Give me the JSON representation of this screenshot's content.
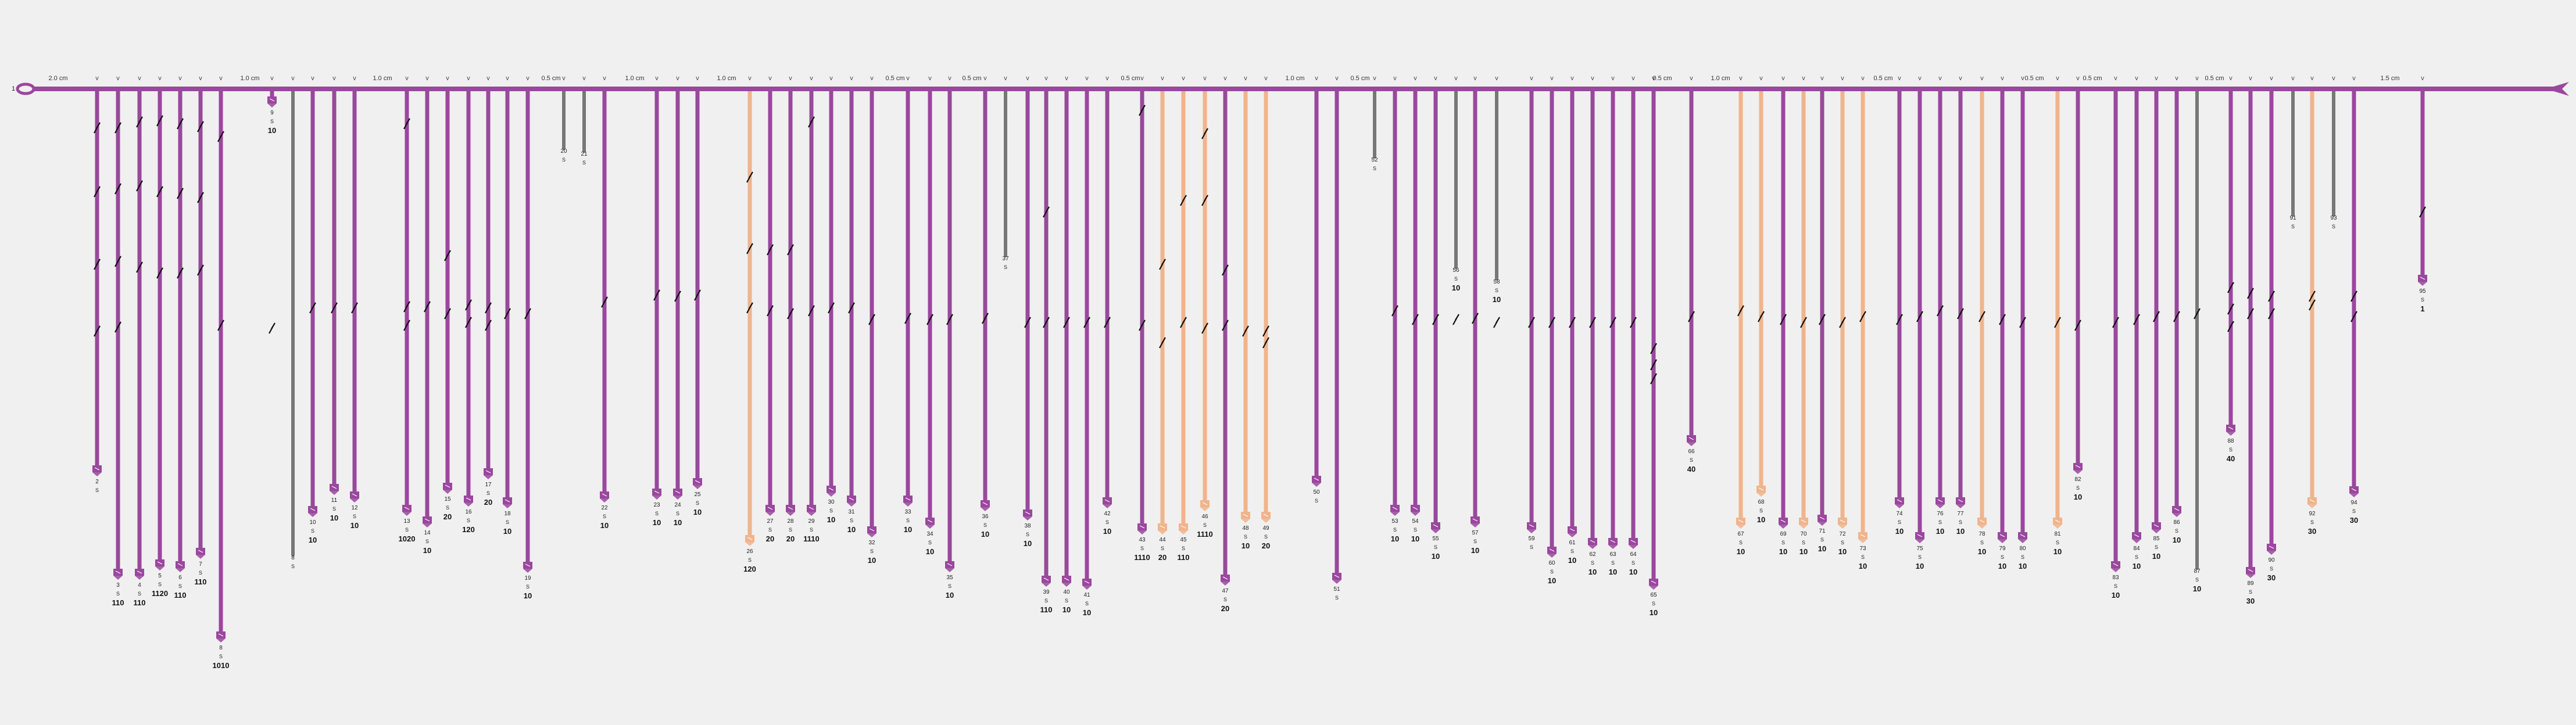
{
  "colors": {
    "background": "#f1f0f0",
    "purple": "#9a479e",
    "orange": "#f0b48c",
    "gray": "#777777",
    "text": "#222222"
  },
  "marker_char": "v",
  "origin_label": "1",
  "scale_labels": [
    "2.0 cm",
    "1.0 cm",
    "1.0 cm",
    "0.5 cm",
    "1.0 cm",
    "1.0 cm",
    "0.5 cm",
    "0.5 cm",
    "0.5 cm",
    "1.0 cm",
    "0.5 cm",
    "0.5 cm",
    "1.0 cm",
    "0.5 cm",
    "0.5 cm",
    "0.5 cm",
    "0.5 cm",
    "1.5 cm"
  ],
  "branches": [
    {
      "label": "2",
      "s": "S",
      "count": "",
      "color": "purple"
    },
    {
      "label": "3",
      "s": "S",
      "count": "110",
      "color": "purple"
    },
    {
      "label": "4",
      "s": "S",
      "count": "110",
      "color": "purple"
    },
    {
      "label": "5",
      "s": "S",
      "count": "1120",
      "color": "purple"
    },
    {
      "label": "6",
      "s": "S",
      "count": "110",
      "color": "purple"
    },
    {
      "label": "7",
      "s": "S",
      "count": "110",
      "color": "purple"
    },
    {
      "label": "8",
      "s": "S",
      "count": "1010",
      "color": "purple"
    },
    {
      "label": "8",
      "s": "S",
      "count": "",
      "color": "gray"
    },
    {
      "label": "9",
      "s": "S",
      "count": "10",
      "color": "purple"
    },
    {
      "label": "10",
      "s": "S",
      "count": "10",
      "color": "purple"
    },
    {
      "label": "11",
      "s": "S",
      "count": "10",
      "color": "purple"
    },
    {
      "label": "12",
      "s": "S",
      "count": "10",
      "color": "purple"
    },
    {
      "label": "13",
      "s": "S",
      "count": "1020",
      "color": "purple"
    },
    {
      "label": "14",
      "s": "S",
      "count": "10",
      "color": "purple"
    },
    {
      "label": "15",
      "s": "S",
      "count": "20",
      "color": "purple"
    },
    {
      "label": "16",
      "s": "S",
      "count": "120",
      "color": "purple"
    },
    {
      "label": "17",
      "s": "S",
      "count": "20",
      "color": "purple"
    },
    {
      "label": "18",
      "s": "S",
      "count": "10",
      "color": "purple"
    },
    {
      "label": "19",
      "s": "S",
      "count": "10",
      "color": "purple"
    },
    {
      "label": "20",
      "s": "S",
      "count": "",
      "color": "gray"
    },
    {
      "label": "21",
      "s": "S",
      "count": "",
      "color": "gray"
    },
    {
      "label": "22",
      "s": "S",
      "count": "10",
      "color": "purple"
    },
    {
      "label": "23",
      "s": "S",
      "count": "10",
      "color": "purple"
    },
    {
      "label": "24",
      "s": "S",
      "count": "10",
      "color": "purple"
    },
    {
      "label": "25",
      "s": "S",
      "count": "10",
      "color": "purple"
    },
    {
      "label": "26",
      "s": "S",
      "count": "120",
      "color": "orange"
    },
    {
      "label": "27",
      "s": "S",
      "count": "20",
      "color": "purple"
    },
    {
      "label": "28",
      "s": "S",
      "count": "20",
      "color": "purple"
    },
    {
      "label": "29",
      "s": "S",
      "count": "1110",
      "color": "purple"
    },
    {
      "label": "30",
      "s": "S",
      "count": "10",
      "color": "purple"
    },
    {
      "label": "31",
      "s": "S",
      "count": "10",
      "color": "purple"
    },
    {
      "label": "32",
      "s": "S",
      "count": "10",
      "color": "purple"
    },
    {
      "label": "33",
      "s": "S",
      "count": "10",
      "color": "purple"
    },
    {
      "label": "34",
      "s": "S",
      "count": "10",
      "color": "purple"
    },
    {
      "label": "35",
      "s": "S",
      "count": "10",
      "color": "purple"
    },
    {
      "label": "36",
      "s": "S",
      "count": "10",
      "color": "purple"
    },
    {
      "label": "37",
      "s": "S",
      "count": "",
      "color": "gray"
    },
    {
      "label": "38",
      "s": "S",
      "count": "10",
      "color": "purple"
    },
    {
      "label": "39",
      "s": "S",
      "count": "110",
      "color": "purple"
    },
    {
      "label": "40",
      "s": "S",
      "count": "10",
      "color": "purple"
    },
    {
      "label": "41",
      "s": "S",
      "count": "10",
      "color": "purple"
    },
    {
      "label": "42",
      "s": "S",
      "count": "10",
      "color": "purple"
    },
    {
      "label": "43",
      "s": "S",
      "count": "1110",
      "color": "purple"
    },
    {
      "label": "44",
      "s": "S",
      "count": "20",
      "color": "orange"
    },
    {
      "label": "45",
      "s": "S",
      "count": "110",
      "color": "orange"
    },
    {
      "label": "46",
      "s": "S",
      "count": "1110",
      "color": "orange"
    },
    {
      "label": "47",
      "s": "S",
      "count": "20",
      "color": "purple"
    },
    {
      "label": "48",
      "s": "S",
      "count": "10",
      "color": "orange"
    },
    {
      "label": "49",
      "s": "S",
      "count": "20",
      "color": "orange"
    },
    {
      "label": "50",
      "s": "S",
      "count": "",
      "color": "purple"
    },
    {
      "label": "51",
      "s": "S",
      "count": "",
      "color": "purple"
    },
    {
      "label": "52",
      "s": "S",
      "count": "",
      "color": "gray"
    },
    {
      "label": "53",
      "s": "S",
      "count": "10",
      "color": "purple"
    },
    {
      "label": "54",
      "s": "S",
      "count": "10",
      "color": "purple"
    },
    {
      "label": "55",
      "s": "S",
      "count": "10",
      "color": "purple"
    },
    {
      "label": "56",
      "s": "S",
      "count": "10",
      "color": "gray"
    },
    {
      "label": "57",
      "s": "S",
      "count": "10",
      "color": "purple"
    },
    {
      "label": "58",
      "s": "S",
      "count": "10",
      "color": "gray"
    },
    {
      "label": "59",
      "s": "S",
      "count": "",
      "color": "purple"
    },
    {
      "label": "60",
      "s": "S",
      "count": "10",
      "color": "purple"
    },
    {
      "label": "61",
      "s": "S",
      "count": "10",
      "color": "purple"
    },
    {
      "label": "62",
      "s": "S",
      "count": "10",
      "color": "purple"
    },
    {
      "label": "63",
      "s": "S",
      "count": "10",
      "color": "purple"
    },
    {
      "label": "64",
      "s": "S",
      "count": "10",
      "color": "purple"
    },
    {
      "label": "65",
      "s": "S",
      "count": "10",
      "color": "purple"
    },
    {
      "label": "66",
      "s": "S",
      "count": "40",
      "color": "purple"
    },
    {
      "label": "67",
      "s": "S",
      "count": "10",
      "color": "orange"
    },
    {
      "label": "68",
      "s": "S",
      "count": "10",
      "color": "orange"
    },
    {
      "label": "69",
      "s": "S",
      "count": "10",
      "color": "purple"
    },
    {
      "label": "70",
      "s": "S",
      "count": "10",
      "color": "orange"
    },
    {
      "label": "71",
      "s": "S",
      "count": "10",
      "color": "purple"
    },
    {
      "label": "72",
      "s": "S",
      "count": "10",
      "color": "orange"
    },
    {
      "label": "73",
      "s": "S",
      "count": "10",
      "color": "orange"
    },
    {
      "label": "74",
      "s": "S",
      "count": "10",
      "color": "purple"
    },
    {
      "label": "75",
      "s": "S",
      "count": "10",
      "color": "purple"
    },
    {
      "label": "76",
      "s": "S",
      "count": "10",
      "color": "purple"
    },
    {
      "label": "77",
      "s": "S",
      "count": "10",
      "color": "purple"
    },
    {
      "label": "78",
      "s": "S",
      "count": "10",
      "color": "orange"
    },
    {
      "label": "79",
      "s": "S",
      "count": "10",
      "color": "purple"
    },
    {
      "label": "80",
      "s": "S",
      "count": "10",
      "color": "purple"
    },
    {
      "label": "81",
      "s": "S",
      "count": "10",
      "color": "orange"
    },
    {
      "label": "82",
      "s": "S",
      "count": "10",
      "color": "purple"
    },
    {
      "label": "83",
      "s": "S",
      "count": "10",
      "color": "purple"
    },
    {
      "label": "84",
      "s": "S",
      "count": "10",
      "color": "purple"
    },
    {
      "label": "85",
      "s": "S",
      "count": "10",
      "color": "purple"
    },
    {
      "label": "86",
      "s": "S",
      "count": "10",
      "color": "purple"
    },
    {
      "label": "87",
      "s": "S",
      "count": "10",
      "color": "gray"
    },
    {
      "label": "88",
      "s": "S",
      "count": "40",
      "color": "purple"
    },
    {
      "label": "89",
      "s": "S",
      "count": "30",
      "color": "purple"
    },
    {
      "label": "90",
      "s": "S",
      "count": "30",
      "color": "purple"
    },
    {
      "label": "91",
      "s": "S",
      "count": "",
      "color": "gray"
    },
    {
      "label": "92",
      "s": "S",
      "count": "30",
      "color": "orange"
    },
    {
      "label": "93",
      "s": "S",
      "count": "",
      "color": "gray"
    },
    {
      "label": "94",
      "s": "S",
      "count": "30",
      "color": "purple"
    },
    {
      "label": "95",
      "s": "S",
      "count": "1",
      "color": "purple"
    }
  ]
}
